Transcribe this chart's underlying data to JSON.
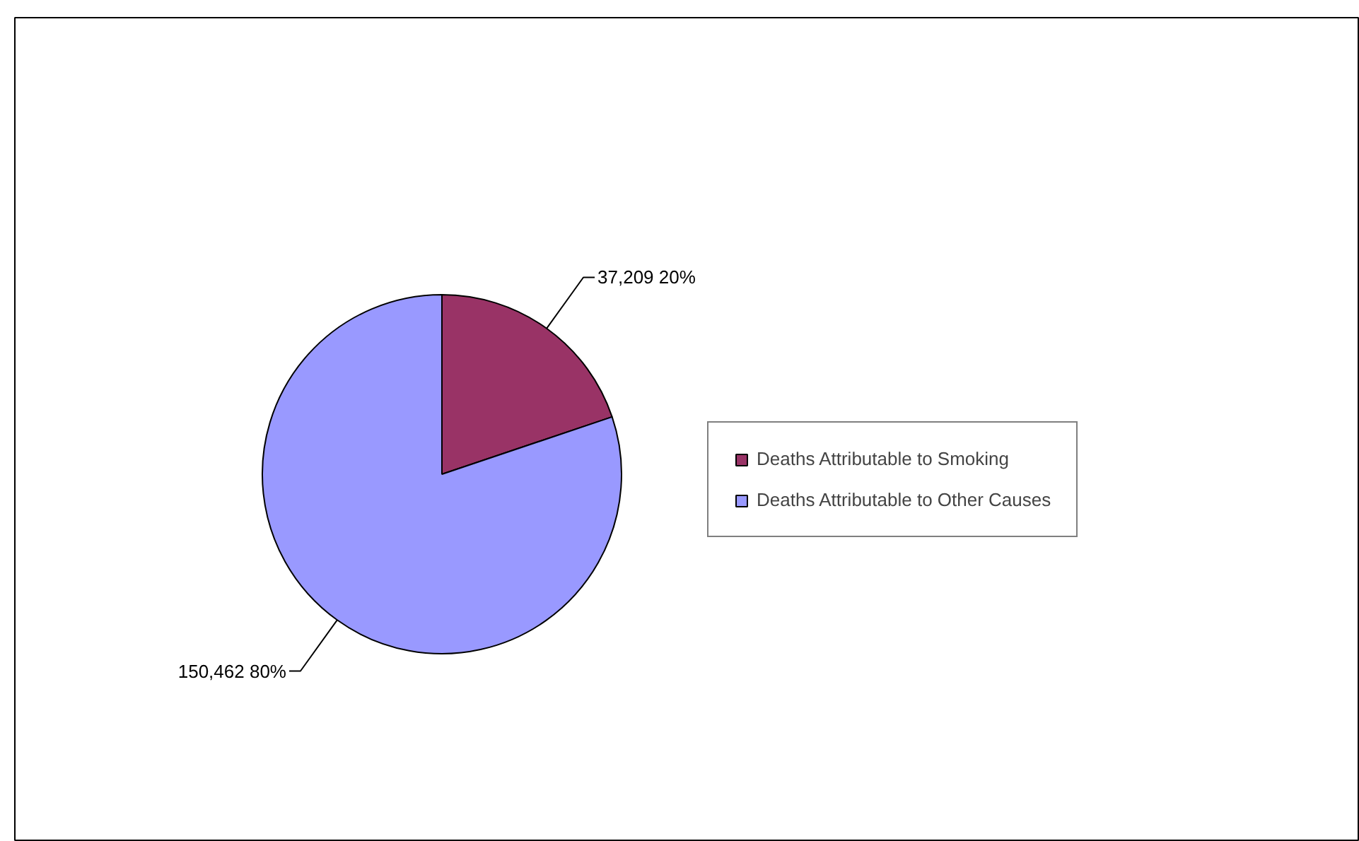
{
  "chart_data": {
    "type": "pie",
    "categories": [
      "Deaths Attributable to Smoking",
      "Deaths Attributable to Other Causes"
    ],
    "values": [
      37209,
      150462
    ],
    "colors": [
      "#993366",
      "#9999ff"
    ],
    "value_labels": [
      "37,209 20%",
      "150,462 80%"
    ],
    "legend": "right"
  }
}
